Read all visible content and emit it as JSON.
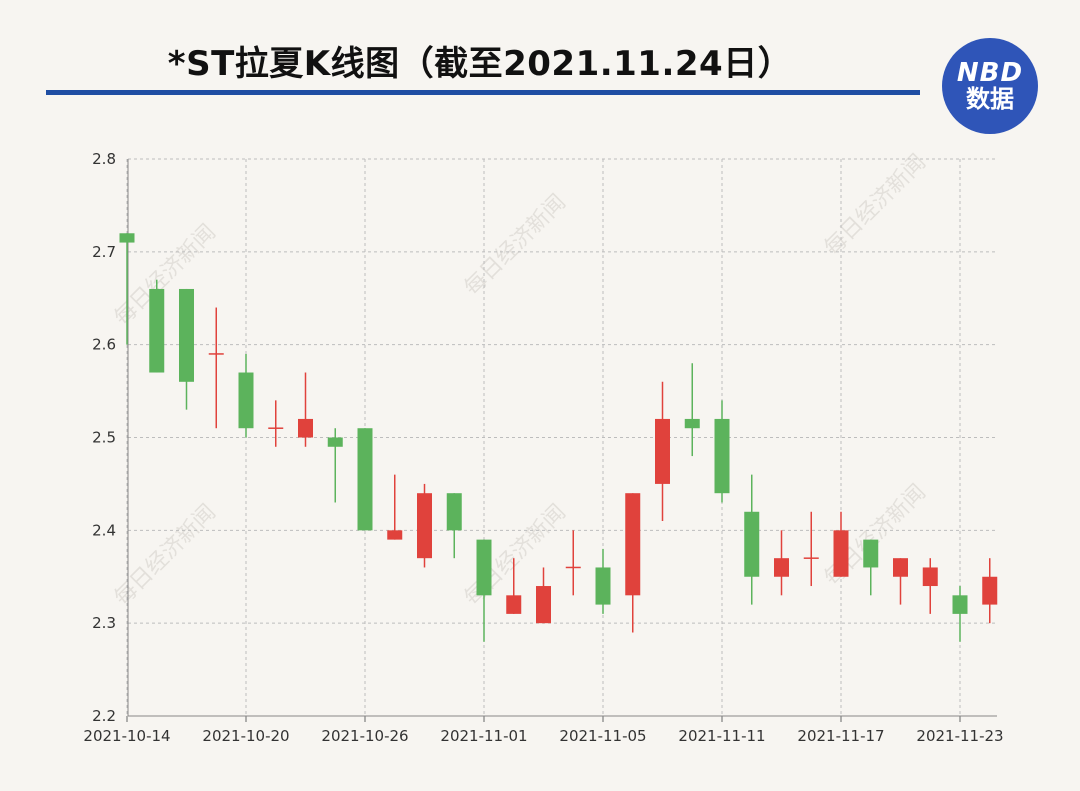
{
  "header": {
    "title": "*ST拉夏K线图（截至2021.11.24日）",
    "logo_line1": "NBD",
    "logo_line2": "数据",
    "watermark": "每日经济新闻"
  },
  "colors": {
    "up": "#e0423c",
    "down": "#5cb35c",
    "rule": "#1f4ea3",
    "grid": "#bdbdbd",
    "logo": "#2f55b8"
  },
  "chart_data": {
    "type": "candlestick",
    "title": "*ST拉夏K线图（截至2021.11.24日）",
    "ylim": [
      2.2,
      2.8
    ],
    "yticks": [
      2.2,
      2.3,
      2.4,
      2.5,
      2.6,
      2.7,
      2.8
    ],
    "xtick_labels": [
      "2021-10-14",
      "2021-10-20",
      "2021-10-26",
      "2021-11-01",
      "2021-11-05",
      "2021-11-11",
      "2021-11-17",
      "2021-11-23"
    ],
    "xtick_index": [
      0,
      4,
      8,
      12,
      16,
      20,
      24,
      28
    ],
    "grid": true,
    "candles": [
      {
        "open": 2.72,
        "close": 2.71,
        "high": 2.72,
        "low": 2.6
      },
      {
        "open": 2.66,
        "close": 2.57,
        "high": 2.67,
        "low": 2.57
      },
      {
        "open": 2.66,
        "close": 2.56,
        "high": 2.66,
        "low": 2.53
      },
      {
        "open": 2.59,
        "close": 2.59,
        "high": 2.64,
        "low": 2.51
      },
      {
        "open": 2.57,
        "close": 2.51,
        "high": 2.59,
        "low": 2.5
      },
      {
        "open": 2.51,
        "close": 2.51,
        "high": 2.54,
        "low": 2.49
      },
      {
        "open": 2.5,
        "close": 2.52,
        "high": 2.57,
        "low": 2.49
      },
      {
        "open": 2.5,
        "close": 2.49,
        "high": 2.51,
        "low": 2.43
      },
      {
        "open": 2.51,
        "close": 2.4,
        "high": 2.51,
        "low": 2.4
      },
      {
        "open": 2.39,
        "close": 2.4,
        "high": 2.46,
        "low": 2.39
      },
      {
        "open": 2.37,
        "close": 2.44,
        "high": 2.45,
        "low": 2.36
      },
      {
        "open": 2.44,
        "close": 2.4,
        "high": 2.44,
        "low": 2.37
      },
      {
        "open": 2.39,
        "close": 2.33,
        "high": 2.39,
        "low": 2.28
      },
      {
        "open": 2.31,
        "close": 2.33,
        "high": 2.37,
        "low": 2.31
      },
      {
        "open": 2.3,
        "close": 2.34,
        "high": 2.36,
        "low": 2.3
      },
      {
        "open": 2.36,
        "close": 2.36,
        "high": 2.4,
        "low": 2.33
      },
      {
        "open": 2.36,
        "close": 2.32,
        "high": 2.38,
        "low": 2.31
      },
      {
        "open": 2.33,
        "close": 2.44,
        "high": 2.44,
        "low": 2.29
      },
      {
        "open": 2.45,
        "close": 2.52,
        "high": 2.56,
        "low": 2.41
      },
      {
        "open": 2.52,
        "close": 2.51,
        "high": 2.58,
        "low": 2.48
      },
      {
        "open": 2.52,
        "close": 2.44,
        "high": 2.54,
        "low": 2.43
      },
      {
        "open": 2.42,
        "close": 2.35,
        "high": 2.46,
        "low": 2.32
      },
      {
        "open": 2.35,
        "close": 2.37,
        "high": 2.4,
        "low": 2.33
      },
      {
        "open": 2.37,
        "close": 2.37,
        "high": 2.42,
        "low": 2.34
      },
      {
        "open": 2.35,
        "close": 2.4,
        "high": 2.42,
        "low": 2.35
      },
      {
        "open": 2.39,
        "close": 2.36,
        "high": 2.39,
        "low": 2.33
      },
      {
        "open": 2.35,
        "close": 2.37,
        "high": 2.37,
        "low": 2.32
      },
      {
        "open": 2.34,
        "close": 2.36,
        "high": 2.37,
        "low": 2.31
      },
      {
        "open": 2.33,
        "close": 2.31,
        "high": 2.34,
        "low": 2.28
      },
      {
        "open": 2.32,
        "close": 2.35,
        "high": 2.37,
        "low": 2.3
      }
    ]
  }
}
